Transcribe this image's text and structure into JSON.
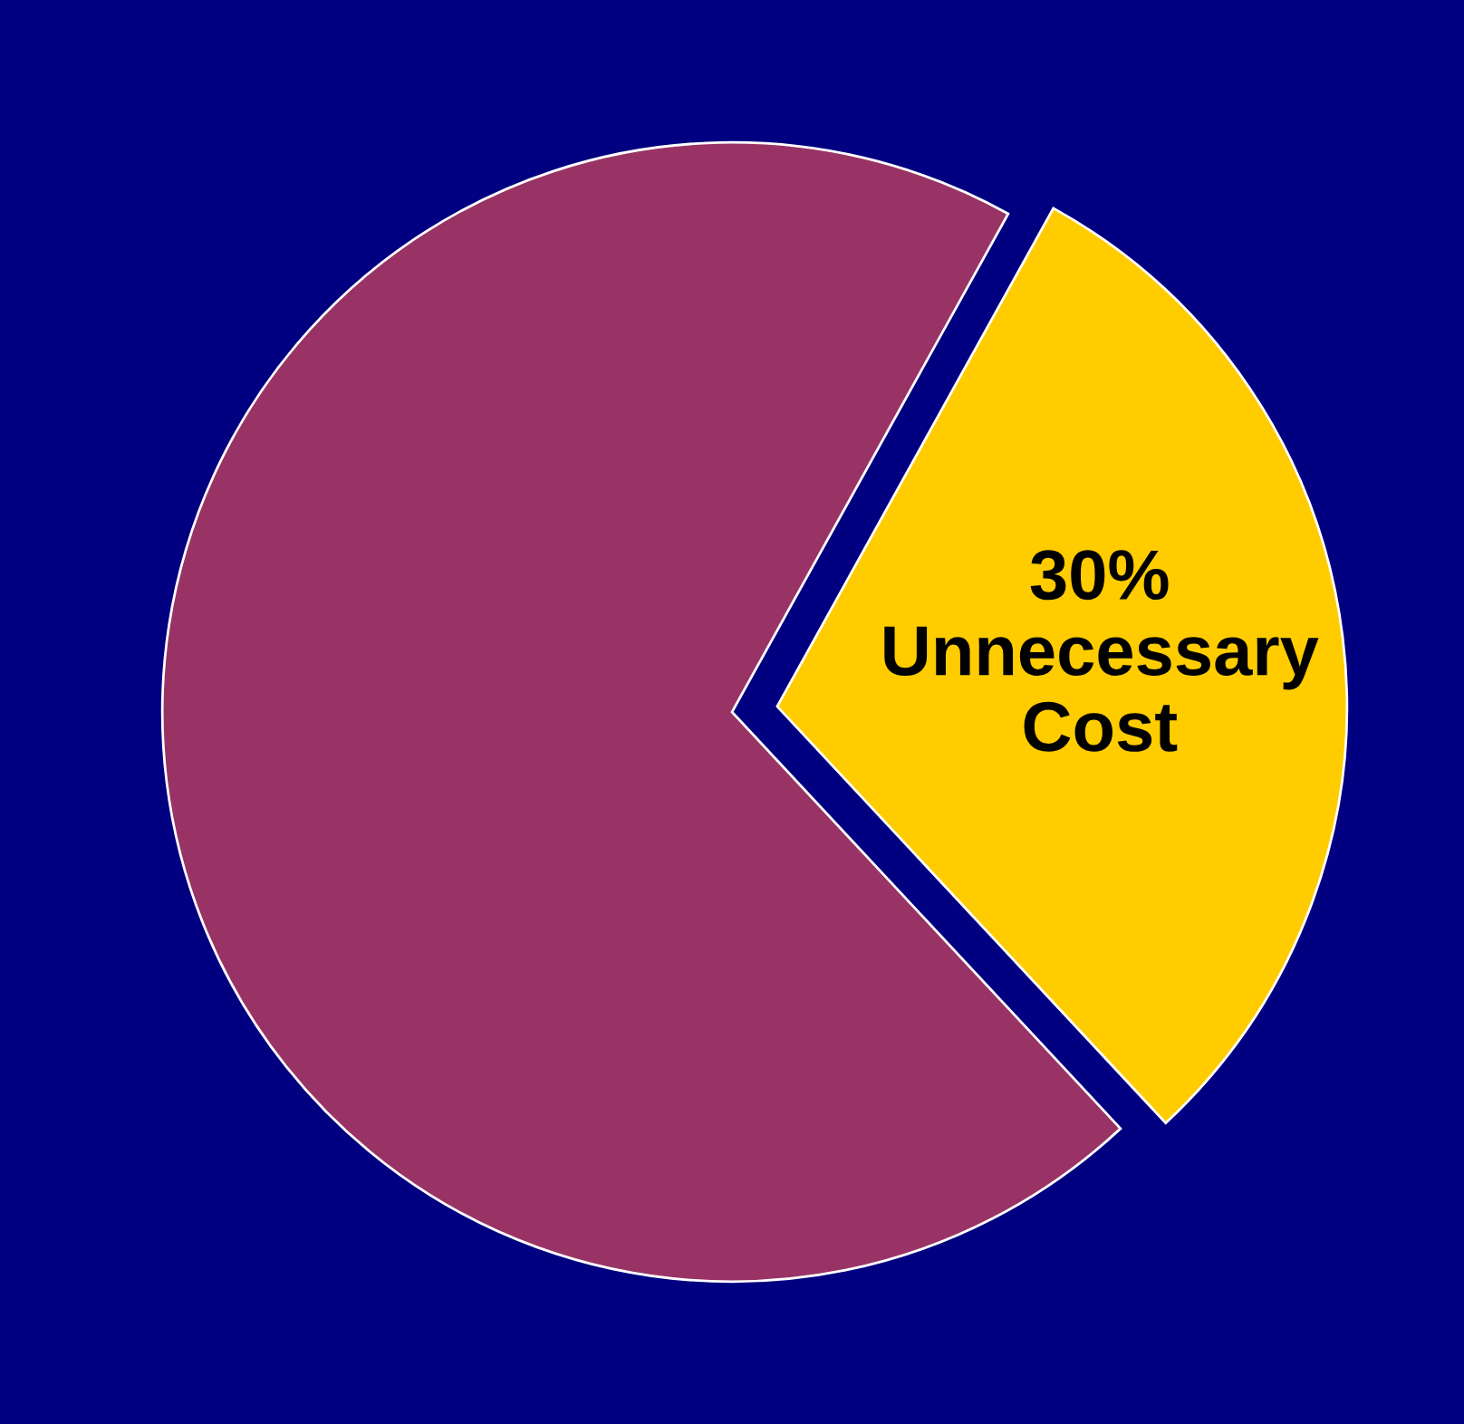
{
  "chart_data": {
    "type": "pie",
    "categories": [
      "Unnecessary Cost",
      null
    ],
    "values": [
      30,
      70
    ],
    "colors": [
      "#ffcc00",
      "#993366"
    ],
    "value_labels": [
      "30%",
      null
    ],
    "legend": false
  }
}
